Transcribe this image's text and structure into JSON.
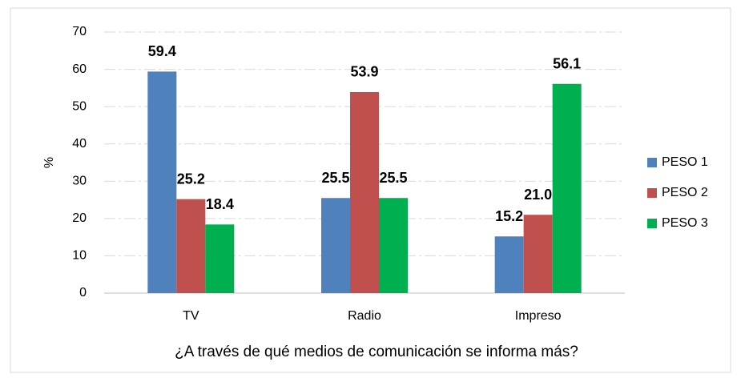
{
  "chart_data": {
    "type": "bar",
    "categories": [
      "TV",
      "Radio",
      "Impreso"
    ],
    "series": [
      {
        "name": "PESO 1",
        "color": "#4f81bd",
        "values": [
          59.4,
          25.5,
          15.2
        ],
        "value_labels": [
          "59.4",
          "25.5",
          "15.2"
        ]
      },
      {
        "name": "PESO 2",
        "color": "#c0504d",
        "values": [
          25.2,
          53.9,
          21.0
        ],
        "value_labels": [
          "25.2",
          "53.9",
          "21.0"
        ]
      },
      {
        "name": "PESO 3",
        "color": "#00b050",
        "values": [
          18.4,
          25.5,
          56.1
        ],
        "value_labels": [
          "18.4",
          "25.5",
          "56.1"
        ]
      }
    ],
    "y_label": "%",
    "x_label": "¿A través de qué medios de comunicación se informa más?",
    "ylim": [
      0,
      70
    ],
    "yticks": [
      0,
      10,
      20,
      30,
      40,
      50,
      60,
      70
    ],
    "grid": true,
    "legend": "right"
  }
}
